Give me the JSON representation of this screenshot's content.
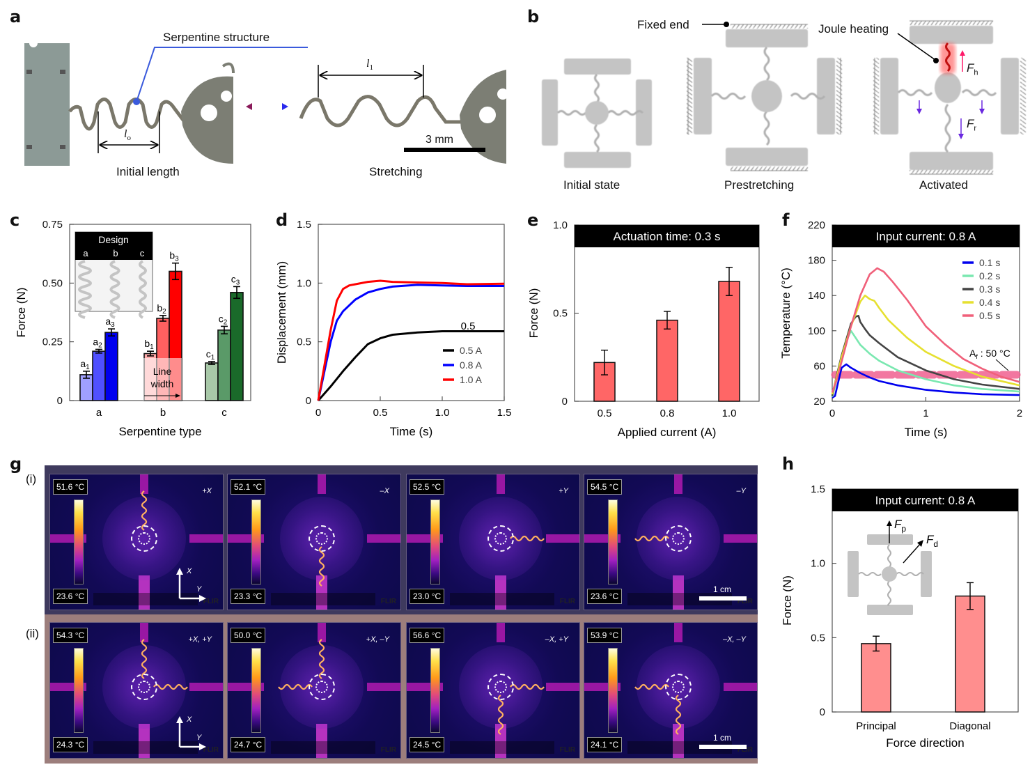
{
  "panel_labels": {
    "a": "a",
    "b": "b",
    "c": "c",
    "d": "d",
    "e": "e",
    "f": "f",
    "g": "g",
    "h": "h"
  },
  "panel_a": {
    "callout": "Serpentine structure",
    "l0_symbol": "l",
    "l0_sub": "o",
    "l1_symbol": "l",
    "l1_sub": "1",
    "left_caption": "Initial length",
    "right_caption": "Stretching",
    "scale_bar": "3 mm"
  },
  "panel_b": {
    "fixed_end": "Fixed end",
    "joule_heating": "Joule heating",
    "fh_symbol": "F",
    "fh_sub": "h",
    "fr_symbol": "F",
    "fr_sub": "r",
    "captions": [
      "Initial state",
      "Prestretching",
      "Activated"
    ]
  },
  "panel_g": {
    "row_labels": [
      "(i)",
      "(ii)"
    ],
    "axis_x": "X",
    "axis_y": "Y",
    "scale_bar": "1 cm",
    "brand": "FLIR",
    "rows": [
      [
        {
          "max": "51.6 °C",
          "min": "23.6 °C",
          "dir": "+X"
        },
        {
          "max": "52.1 °C",
          "min": "23.3 °C",
          "dir": "–X"
        },
        {
          "max": "52.5 °C",
          "min": "23.0 °C",
          "dir": "+Y"
        },
        {
          "max": "54.5 °C",
          "min": "23.6 °C",
          "dir": "–Y"
        }
      ],
      [
        {
          "max": "54.3 °C",
          "min": "24.3 °C",
          "dir": "+X, +Y"
        },
        {
          "max": "50.0 °C",
          "min": "24.7 °C",
          "dir": "+X, –Y"
        },
        {
          "max": "56.6 °C",
          "min": "24.5 °C",
          "dir": "–X, +Y"
        },
        {
          "max": "53.9 °C",
          "min": "24.1 °C",
          "dir": "–X, –Y"
        }
      ]
    ]
  },
  "chart_data": [
    {
      "id": "c",
      "type": "bar",
      "title": "",
      "xlabel": "Serpentine type",
      "ylabel": "Force (N)",
      "ylim": [
        0,
        0.75
      ],
      "yticks": [
        "0",
        "0.25",
        "0.50",
        "0.75"
      ],
      "yticks_values": [
        0,
        0.25,
        0.5,
        0.75
      ],
      "categories": [
        "a",
        "b",
        "c"
      ],
      "series": [
        {
          "group": "a",
          "labels": [
            "a",
            "a",
            "a"
          ],
          "subs": [
            "1",
            "2",
            "3"
          ],
          "values": [
            0.11,
            0.21,
            0.29
          ],
          "errors": [
            0.015,
            0.008,
            0.015
          ],
          "colors": [
            "#a0a0ff",
            "#5050ff",
            "#0000ee"
          ]
        },
        {
          "group": "b",
          "labels": [
            "b",
            "b",
            "b"
          ],
          "subs": [
            "1",
            "2",
            "3"
          ],
          "values": [
            0.2,
            0.35,
            0.55
          ],
          "errors": [
            0.01,
            0.012,
            0.035
          ],
          "colors": [
            "#ffaaaa",
            "#ff6060",
            "#ff0000"
          ]
        },
        {
          "group": "c",
          "labels": [
            "c",
            "c",
            "c"
          ],
          "subs": [
            "1",
            "2",
            "3"
          ],
          "values": [
            0.16,
            0.3,
            0.46
          ],
          "errors": [
            0.006,
            0.016,
            0.025
          ],
          "colors": [
            "#a8c8a8",
            "#5a9a68",
            "#1a6a2a"
          ]
        }
      ],
      "inset": {
        "title": "Design",
        "columns": [
          "a",
          "b",
          "c"
        ]
      },
      "annotation": "Line width"
    },
    {
      "id": "d",
      "type": "line",
      "xlabel": "Time (s)",
      "ylabel": "Displacement (mm)",
      "xlim": [
        0,
        1.5
      ],
      "ylim": [
        0,
        1.5
      ],
      "xticks": [
        "0",
        "0.5",
        "1.0",
        "1.5"
      ],
      "xticks_values": [
        0,
        0.5,
        1.0,
        1.5
      ],
      "yticks": [
        "0",
        "0.5",
        "1.0",
        "1.5"
      ],
      "yticks_values": [
        0,
        0.5,
        1.0,
        1.5
      ],
      "annotation": "0.5",
      "legend": "bottom-right",
      "series": [
        {
          "name": "0.5 A",
          "color": "#000000",
          "x": [
            0,
            0.1,
            0.2,
            0.3,
            0.4,
            0.5,
            0.6,
            0.8,
            1.0,
            1.2,
            1.5
          ],
          "y": [
            0,
            0.12,
            0.25,
            0.37,
            0.48,
            0.53,
            0.56,
            0.58,
            0.59,
            0.59,
            0.59
          ]
        },
        {
          "name": "0.8 A",
          "color": "#0000ff",
          "x": [
            0,
            0.05,
            0.1,
            0.15,
            0.2,
            0.3,
            0.4,
            0.5,
            0.6,
            0.8,
            1.0,
            1.2,
            1.5
          ],
          "y": [
            0,
            0.25,
            0.5,
            0.68,
            0.76,
            0.86,
            0.92,
            0.95,
            0.97,
            0.985,
            0.98,
            0.975,
            0.975
          ]
        },
        {
          "name": "1.0 A",
          "color": "#ff0000",
          "x": [
            0,
            0.05,
            0.1,
            0.15,
            0.2,
            0.25,
            0.3,
            0.4,
            0.5,
            0.6,
            0.8,
            1.0,
            1.2,
            1.5
          ],
          "y": [
            0,
            0.3,
            0.6,
            0.85,
            0.95,
            0.98,
            0.99,
            1.01,
            1.02,
            1.01,
            1.005,
            1.0,
            0.99,
            0.995
          ]
        }
      ]
    },
    {
      "id": "e",
      "type": "bar",
      "title": "Actuation time: 0.3 s",
      "xlabel": "Applied current (A)",
      "ylabel": "Force (N)",
      "ylim": [
        0,
        1.0
      ],
      "yticks": [
        "0",
        "0.5",
        "1.0"
      ],
      "yticks_values": [
        0,
        0.5,
        1.0
      ],
      "categories": [
        "0.5",
        "0.8",
        "1.0"
      ],
      "values": [
        0.22,
        0.46,
        0.68
      ],
      "errors": [
        0.07,
        0.05,
        0.08
      ],
      "color": "#ff6666"
    },
    {
      "id": "f",
      "type": "line",
      "title": "Input current: 0.8 A",
      "xlabel": "Time (s)",
      "ylabel": "Temperature (°C)",
      "xlim": [
        0,
        2
      ],
      "ylim": [
        20,
        220
      ],
      "xticks": [
        "0",
        "1",
        "2"
      ],
      "xticks_values": [
        0,
        1,
        2
      ],
      "yticks": [
        "20",
        "60",
        "100",
        "140",
        "180",
        "220"
      ],
      "yticks_values": [
        20,
        60,
        100,
        140,
        180,
        220
      ],
      "legend": "top-right",
      "threshold": {
        "label_main": "A",
        "label_sub": "f",
        "label_rest": " : 50 °C",
        "value": 50,
        "color": "#f06090"
      },
      "series": [
        {
          "name": "0.1 s",
          "color": "#0000ee",
          "x": [
            0,
            0.03,
            0.06,
            0.1,
            0.15,
            0.2,
            0.3,
            0.4,
            0.5,
            0.7,
            1.0,
            1.3,
            1.6,
            2.0
          ],
          "y": [
            24,
            26,
            40,
            58,
            62,
            58,
            52,
            47,
            43,
            38,
            33,
            30,
            28,
            27
          ]
        },
        {
          "name": "0.2 s",
          "color": "#7ae8b0",
          "x": [
            0,
            0.05,
            0.1,
            0.15,
            0.2,
            0.25,
            0.3,
            0.4,
            0.5,
            0.7,
            1.0,
            1.3,
            1.6,
            2.0
          ],
          "y": [
            25,
            45,
            68,
            88,
            100,
            92,
            84,
            74,
            66,
            55,
            45,
            38,
            34,
            31
          ]
        },
        {
          "name": "0.3 s",
          "color": "#444444",
          "x": [
            0,
            0.05,
            0.1,
            0.2,
            0.25,
            0.28,
            0.3,
            0.35,
            0.4,
            0.5,
            0.7,
            1.0,
            1.3,
            1.6,
            2.0
          ],
          "y": [
            26,
            50,
            72,
            108,
            116,
            117,
            110,
            102,
            95,
            86,
            70,
            55,
            45,
            39,
            34
          ]
        },
        {
          "name": "0.4 s",
          "color": "#e6e030",
          "x": [
            0,
            0.05,
            0.1,
            0.2,
            0.3,
            0.35,
            0.4,
            0.45,
            0.5,
            0.6,
            0.8,
            1.0,
            1.3,
            1.6,
            2.0
          ],
          "y": [
            28,
            48,
            70,
            105,
            133,
            140,
            136,
            134,
            126,
            112,
            92,
            76,
            60,
            48,
            38
          ]
        },
        {
          "name": "0.5 s",
          "color": "#f0607a",
          "x": [
            0,
            0.05,
            0.1,
            0.2,
            0.3,
            0.4,
            0.48,
            0.55,
            0.65,
            0.8,
            1.0,
            1.2,
            1.4,
            1.6,
            1.8,
            2.0
          ],
          "y": [
            30,
            45,
            65,
            105,
            140,
            164,
            171,
            167,
            155,
            135,
            105,
            85,
            68,
            57,
            48,
            42
          ]
        }
      ]
    },
    {
      "id": "h",
      "type": "bar",
      "title": "Input current: 0.8 A",
      "xlabel": "Force direction",
      "ylabel": "Force (N)",
      "ylim": [
        0,
        1.5
      ],
      "yticks": [
        "0",
        "0.5",
        "1.0",
        "1.5"
      ],
      "yticks_values": [
        0,
        0.5,
        1.0,
        1.5
      ],
      "categories": [
        "Principal",
        "Diagonal"
      ],
      "values": [
        0.46,
        0.78
      ],
      "errors": [
        0.05,
        0.09
      ],
      "color": "#ff8e8e",
      "inset": {
        "fp_symbol": "F",
        "fp_sub": "p",
        "fd_symbol": "F",
        "fd_sub": "d"
      }
    }
  ]
}
